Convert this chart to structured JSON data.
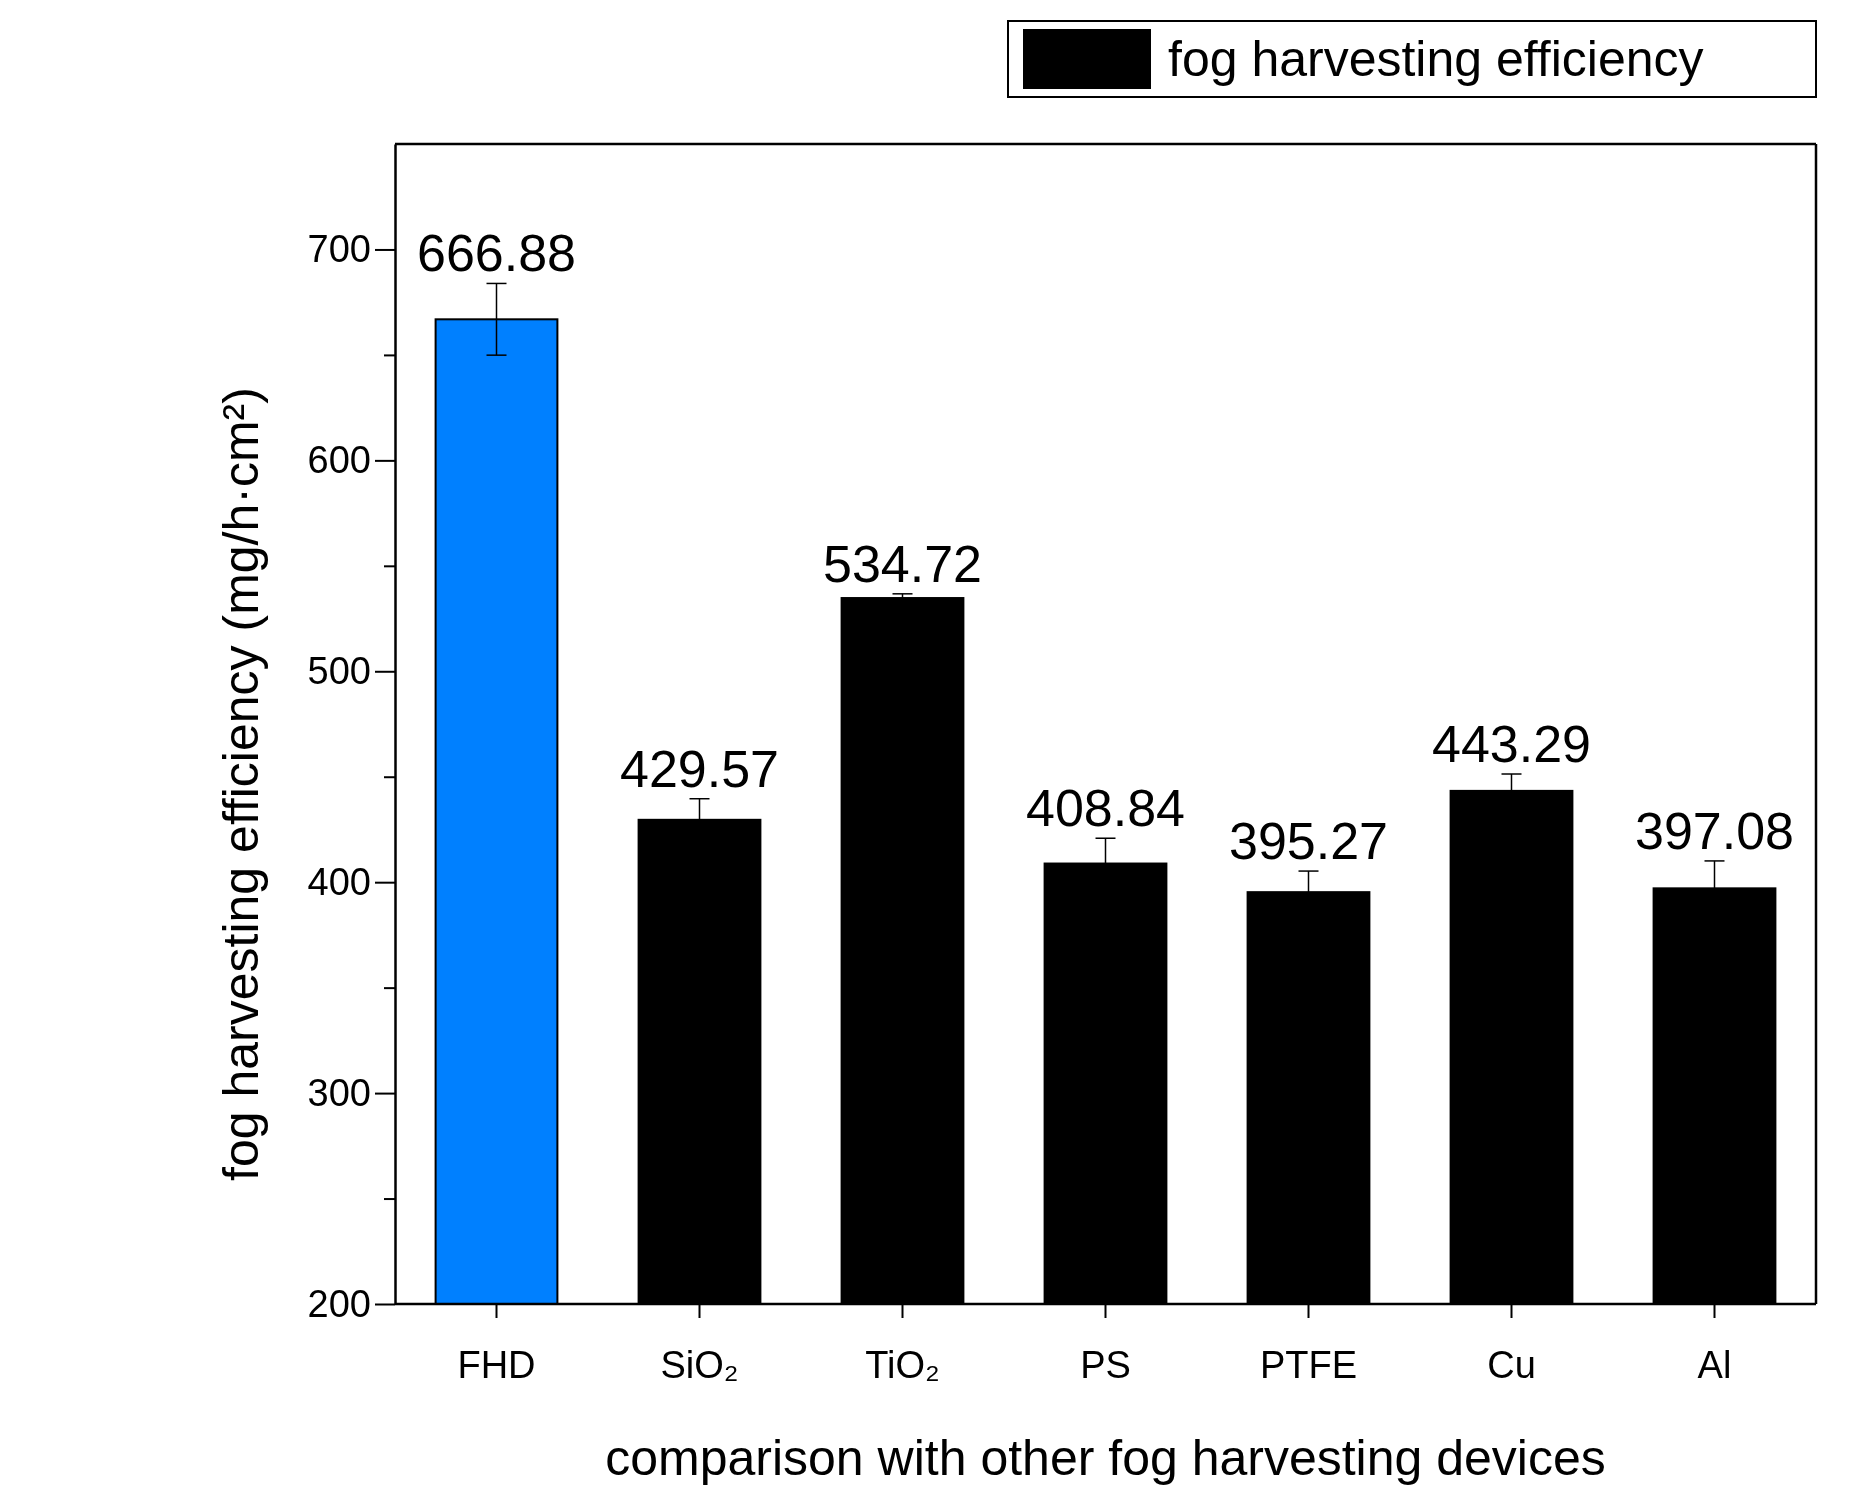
{
  "chart_data": {
    "type": "bar",
    "xlabel": "comparison with other fog harvesting devices",
    "ylabel": "fog harvesting efficiency (mg/h·cm²)",
    "categories": [
      "FHD",
      "SiO₂",
      "TiO₂",
      "PS",
      "PTFE",
      "Cu",
      "Al"
    ],
    "series": [
      {
        "name": "fog harvesting efficiency",
        "color": "#000000",
        "colors": [
          "#0080ff",
          "#000000",
          "#000000",
          "#000000",
          "#000000",
          "#000000",
          "#000000"
        ],
        "values": [
          666.88,
          429.57,
          534.72,
          408.84,
          395.27,
          443.29,
          397.08
        ],
        "errors": [
          17,
          10,
          2,
          12,
          10,
          8,
          13
        ]
      }
    ],
    "data_labels": true,
    "ylim": [
      200,
      750
    ],
    "yticks": [
      200,
      {
        "value": 250,
        "label": null
      },
      300,
      {
        "value": 350,
        "label": null
      },
      400,
      {
        "value": 450,
        "label": null
      },
      500,
      {
        "value": 550,
        "label": null
      },
      600,
      {
        "value": 650,
        "label": null
      },
      700
    ],
    "legend": "top right",
    "grid": false
  }
}
